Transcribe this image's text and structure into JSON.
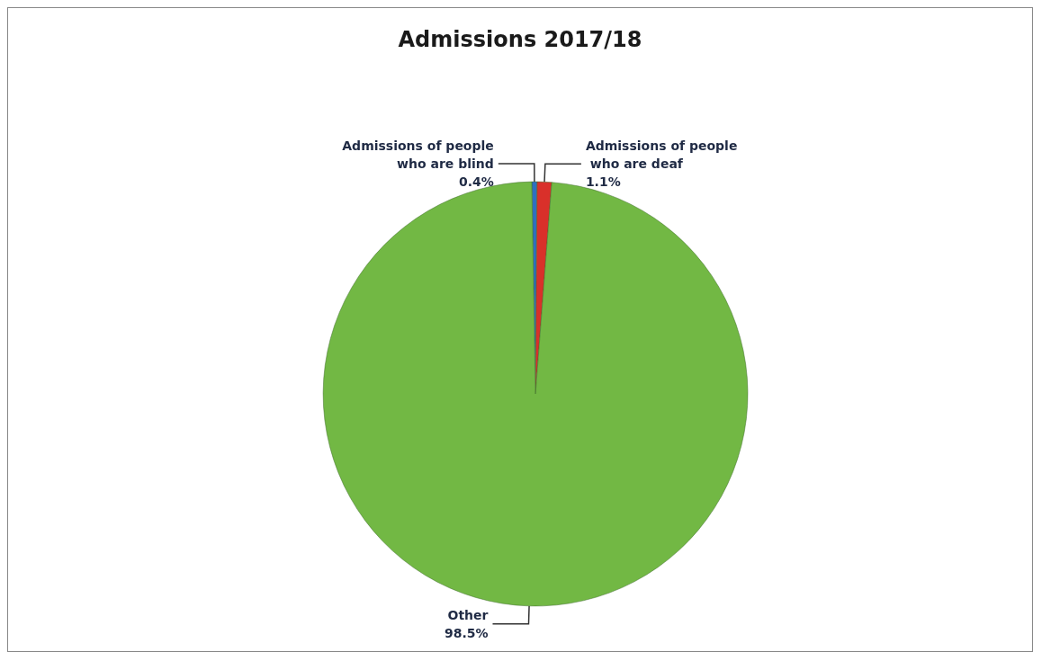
{
  "chart_data": {
    "type": "pie",
    "title": "Admissions 2017/18",
    "categories": [
      "Admissions of people who are blind",
      "Admissions of people who are deaf",
      "Other"
    ],
    "values": [
      0.4,
      1.1,
      98.5
    ],
    "colors": [
      "#2f6fc0",
      "#d9302a",
      "#72b844"
    ],
    "value_labels": [
      "0.4%",
      "1.1%",
      "98.5%"
    ],
    "legend": false
  }
}
